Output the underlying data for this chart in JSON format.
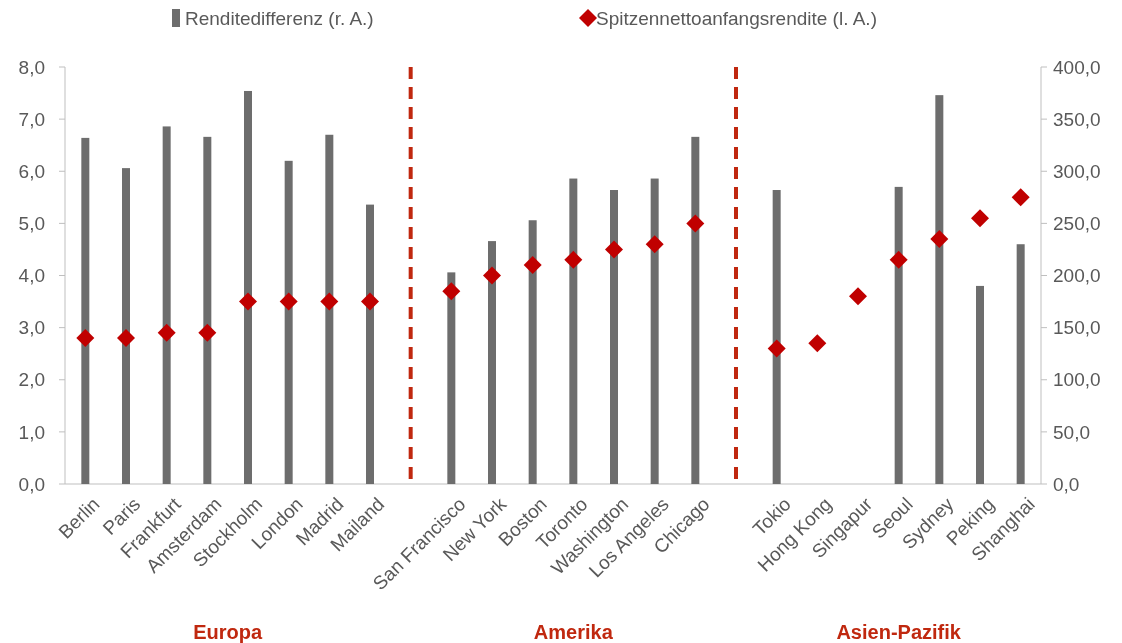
{
  "chart_data": {
    "type": "bar",
    "categories": [
      "Berlin",
      "Paris",
      "Frankfurt",
      "Amsterdam",
      "Stockholm",
      "London",
      "Madrid",
      "Mailand",
      null,
      "San Francisco",
      "New York",
      "Boston",
      "Toronto",
      "Washington",
      "Los Angeles",
      "Chicago",
      null,
      "Tokio",
      "Hong Kong",
      "Singapur",
      "Seoul",
      "Sydney",
      "Peking",
      "Shanghai"
    ],
    "series": [
      {
        "name": "Renditedifferenz (r. A.)",
        "axis": "y2",
        "color": "#6d6d6d",
        "values": [
          332,
          303,
          343,
          333,
          377,
          310,
          335,
          268,
          null,
          203,
          233,
          253,
          293,
          282,
          293,
          333,
          null,
          282,
          null,
          null,
          285,
          373,
          190,
          230
        ]
      },
      {
        "name": "Spitzennettoanfangsrendite (l. A.)",
        "type": "scatter",
        "marker": "diamond",
        "color": "#c00000",
        "values": [
          2.8,
          2.8,
          2.9,
          2.9,
          3.5,
          3.5,
          3.5,
          3.5,
          null,
          3.7,
          4.0,
          4.2,
          4.3,
          4.5,
          4.6,
          5.0,
          null,
          2.6,
          2.7,
          3.6,
          4.3,
          4.7,
          5.1,
          5.5
        ]
      }
    ],
    "ylim": [
      0,
      8
    ],
    "yticks": [
      {
        "value": 0,
        "label": "0,0"
      },
      {
        "value": 1,
        "label": "1,0"
      },
      {
        "value": 2,
        "label": "2,0"
      },
      {
        "value": 3,
        "label": "3,0"
      },
      {
        "value": 4,
        "label": "4,0"
      },
      {
        "value": 5,
        "label": "5,0"
      },
      {
        "value": 6,
        "label": "6,0"
      },
      {
        "value": 7,
        "label": "7,0"
      },
      {
        "value": 8,
        "label": "8,0"
      }
    ],
    "y2lim": [
      0,
      400
    ],
    "y2ticks": [
      {
        "value": 0,
        "label": "0,0"
      },
      {
        "value": 50,
        "label": "50,0"
      },
      {
        "value": 100,
        "label": "100,0"
      },
      {
        "value": 150,
        "label": "150,0"
      },
      {
        "value": 200,
        "label": "200,0"
      },
      {
        "value": 250,
        "label": "250,0"
      },
      {
        "value": 300,
        "label": "300,0"
      },
      {
        "value": 350,
        "label": "350,0"
      },
      {
        "value": 400,
        "label": "400,0"
      }
    ],
    "annotations": [
      "Europa",
      "Amerika",
      "Asien-Pazifik"
    ],
    "legend": "top",
    "grid": false
  }
}
